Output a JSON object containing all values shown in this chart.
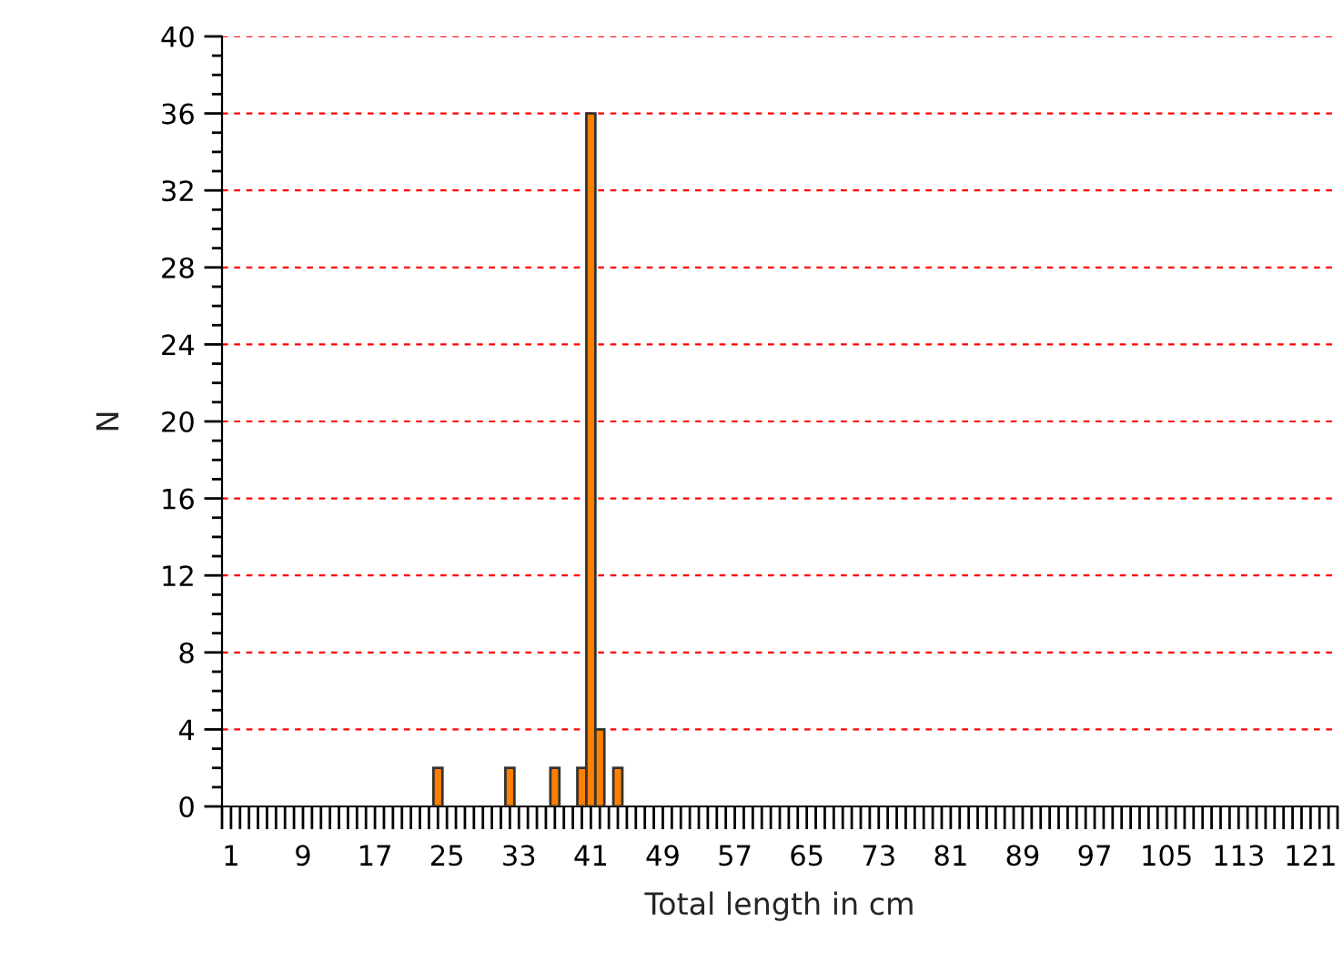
{
  "chart_data": {
    "type": "histogram",
    "xlabel": "Total length in cm",
    "ylabel": "N",
    "bins": [
      23.5,
      24.5,
      25.5,
      26.5,
      27.5,
      28.5,
      29.5,
      30.5,
      31.5,
      32.5,
      33.5,
      34.5,
      35.5,
      36.5,
      37.5,
      38.5,
      39.5,
      40.5,
      41.5,
      42.5,
      43.5,
      44.5
    ],
    "values": [
      2,
      0,
      0,
      0,
      0,
      0,
      0,
      0,
      2,
      0,
      0,
      0,
      0,
      2,
      0,
      0,
      2,
      36,
      4,
      0,
      2
    ],
    "color": "#ff8000",
    "xlim": [
      0,
      124
    ],
    "xticks": [
      {
        "value": 0,
        "label": null
      },
      1,
      {
        "value": 2,
        "label": null
      },
      {
        "value": 3,
        "label": null
      },
      {
        "value": 4,
        "label": null
      },
      {
        "value": 5,
        "label": null
      },
      {
        "value": 6,
        "label": null
      },
      {
        "value": 7,
        "label": null
      },
      {
        "value": 8,
        "label": null
      },
      9,
      {
        "value": 10,
        "label": null
      },
      {
        "value": 11,
        "label": null
      },
      {
        "value": 12,
        "label": null
      },
      {
        "value": 13,
        "label": null
      },
      {
        "value": 14,
        "label": null
      },
      {
        "value": 15,
        "label": null
      },
      {
        "value": 16,
        "label": null
      },
      17,
      {
        "value": 18,
        "label": null
      },
      {
        "value": 19,
        "label": null
      },
      {
        "value": 20,
        "label": null
      },
      {
        "value": 21,
        "label": null
      },
      {
        "value": 22,
        "label": null
      },
      {
        "value": 23,
        "label": null
      },
      {
        "value": 24,
        "label": null
      },
      25,
      {
        "value": 26,
        "label": null
      },
      {
        "value": 27,
        "label": null
      },
      {
        "value": 28,
        "label": null
      },
      {
        "value": 29,
        "label": null
      },
      {
        "value": 30,
        "label": null
      },
      {
        "value": 31,
        "label": null
      },
      {
        "value": 32,
        "label": null
      },
      33,
      {
        "value": 34,
        "label": null
      },
      {
        "value": 35,
        "label": null
      },
      {
        "value": 36,
        "label": null
      },
      {
        "value": 37,
        "label": null
      },
      {
        "value": 38,
        "label": null
      },
      {
        "value": 39,
        "label": null
      },
      {
        "value": 40,
        "label": null
      },
      41,
      {
        "value": 42,
        "label": null
      },
      {
        "value": 43,
        "label": null
      },
      {
        "value": 44,
        "label": null
      },
      {
        "value": 45,
        "label": null
      },
      {
        "value": 46,
        "label": null
      },
      {
        "value": 47,
        "label": null
      },
      {
        "value": 48,
        "label": null
      },
      49,
      {
        "value": 50,
        "label": null
      },
      {
        "value": 51,
        "label": null
      },
      {
        "value": 52,
        "label": null
      },
      {
        "value": 53,
        "label": null
      },
      {
        "value": 54,
        "label": null
      },
      {
        "value": 55,
        "label": null
      },
      {
        "value": 56,
        "label": null
      },
      57,
      {
        "value": 58,
        "label": null
      },
      {
        "value": 59,
        "label": null
      },
      {
        "value": 60,
        "label": null
      },
      {
        "value": 61,
        "label": null
      },
      {
        "value": 62,
        "label": null
      },
      {
        "value": 63,
        "label": null
      },
      {
        "value": 64,
        "label": null
      },
      65,
      {
        "value": 66,
        "label": null
      },
      {
        "value": 67,
        "label": null
      },
      {
        "value": 68,
        "label": null
      },
      {
        "value": 69,
        "label": null
      },
      {
        "value": 70,
        "label": null
      },
      {
        "value": 71,
        "label": null
      },
      {
        "value": 72,
        "label": null
      },
      73,
      {
        "value": 74,
        "label": null
      },
      {
        "value": 75,
        "label": null
      },
      {
        "value": 76,
        "label": null
      },
      {
        "value": 77,
        "label": null
      },
      {
        "value": 78,
        "label": null
      },
      {
        "value": 79,
        "label": null
      },
      {
        "value": 80,
        "label": null
      },
      81,
      {
        "value": 82,
        "label": null
      },
      {
        "value": 83,
        "label": null
      },
      {
        "value": 84,
        "label": null
      },
      {
        "value": 85,
        "label": null
      },
      {
        "value": 86,
        "label": null
      },
      {
        "value": 87,
        "label": null
      },
      {
        "value": 88,
        "label": null
      },
      89,
      {
        "value": 90,
        "label": null
      },
      {
        "value": 91,
        "label": null
      },
      {
        "value": 92,
        "label": null
      },
      {
        "value": 93,
        "label": null
      },
      {
        "value": 94,
        "label": null
      },
      {
        "value": 95,
        "label": null
      },
      {
        "value": 96,
        "label": null
      },
      97,
      {
        "value": 98,
        "label": null
      },
      {
        "value": 99,
        "label": null
      },
      {
        "value": 100,
        "label": null
      },
      {
        "value": 101,
        "label": null
      },
      {
        "value": 102,
        "label": null
      },
      {
        "value": 103,
        "label": null
      },
      {
        "value": 104,
        "label": null
      },
      105,
      {
        "value": 106,
        "label": null
      },
      {
        "value": 107,
        "label": null
      },
      {
        "value": 108,
        "label": null
      },
      {
        "value": 109,
        "label": null
      },
      {
        "value": 110,
        "label": null
      },
      {
        "value": 111,
        "label": null
      },
      {
        "value": 112,
        "label": null
      },
      113,
      {
        "value": 114,
        "label": null
      },
      {
        "value": 115,
        "label": null
      },
      {
        "value": 116,
        "label": null
      },
      {
        "value": 117,
        "label": null
      },
      {
        "value": 118,
        "label": null
      },
      {
        "value": 119,
        "label": null
      },
      {
        "value": 120,
        "label": null
      },
      121,
      {
        "value": 122,
        "label": null
      },
      {
        "value": 123,
        "label": null
      },
      {
        "value": 124,
        "label": null
      }
    ],
    "ylim": [
      0,
      40
    ],
    "yticks": [
      0,
      {
        "value": 1,
        "label": null
      },
      {
        "value": 2,
        "label": null
      },
      {
        "value": 3,
        "label": null
      },
      4,
      {
        "value": 5,
        "label": null
      },
      {
        "value": 6,
        "label": null
      },
      {
        "value": 7,
        "label": null
      },
      8,
      {
        "value": 9,
        "label": null
      },
      {
        "value": 10,
        "label": null
      },
      {
        "value": 11,
        "label": null
      },
      12,
      {
        "value": 13,
        "label": null
      },
      {
        "value": 14,
        "label": null
      },
      {
        "value": 15,
        "label": null
      },
      16,
      {
        "value": 17,
        "label": null
      },
      {
        "value": 18,
        "label": null
      },
      {
        "value": 19,
        "label": null
      },
      20,
      {
        "value": 21,
        "label": null
      },
      {
        "value": 22,
        "label": null
      },
      {
        "value": 23,
        "label": null
      },
      24,
      {
        "value": 25,
        "label": null
      },
      {
        "value": 26,
        "label": null
      },
      {
        "value": 27,
        "label": null
      },
      28,
      {
        "value": 29,
        "label": null
      },
      {
        "value": 30,
        "label": null
      },
      {
        "value": 31,
        "label": null
      },
      32,
      {
        "value": 33,
        "label": null
      },
      {
        "value": 34,
        "label": null
      },
      {
        "value": 35,
        "label": null
      },
      36,
      {
        "value": 37,
        "label": null
      },
      {
        "value": 38,
        "label": null
      },
      {
        "value": 39,
        "label": null
      },
      40
    ],
    "grid": "y"
  }
}
